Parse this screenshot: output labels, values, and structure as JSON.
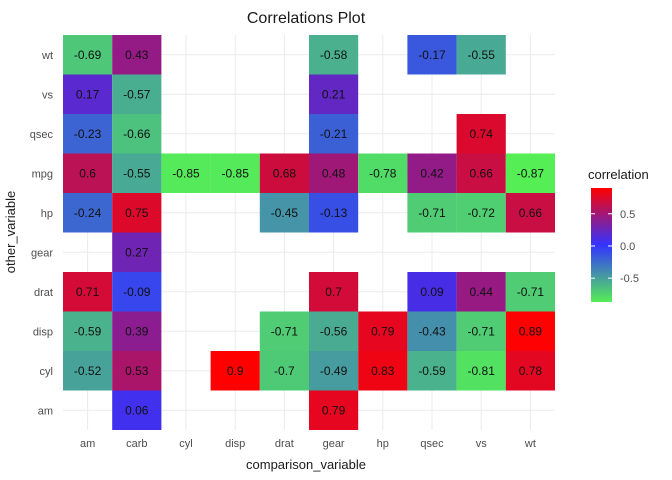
{
  "chart_data": {
    "type": "heatmap",
    "title": "Correlations Plot",
    "xlabel": "comparison_variable",
    "ylabel": "other_variable",
    "x_categories": [
      "am",
      "carb",
      "cyl",
      "disp",
      "drat",
      "gear",
      "hp",
      "qsec",
      "vs",
      "wt"
    ],
    "y_categories": [
      "am",
      "cyl",
      "disp",
      "drat",
      "gear",
      "hp",
      "mpg",
      "qsec",
      "vs",
      "wt"
    ],
    "grid": true,
    "legend": {
      "title": "correlation",
      "placement": "right",
      "ticks": [
        0.5,
        0.0,
        -0.5
      ],
      "tick_labels": [
        "0.5",
        "0.0",
        "-0.5"
      ],
      "range": [
        -0.87,
        0.9
      ],
      "colors": {
        "high": "#ff0000",
        "mid": "#3333ff",
        "low": "#55ee55"
      }
    },
    "cells": [
      {
        "x": "am",
        "y": "wt",
        "value": -0.69,
        "label": "-0.69"
      },
      {
        "x": "carb",
        "y": "wt",
        "value": 0.43,
        "label": "0.43"
      },
      {
        "x": "gear",
        "y": "wt",
        "value": -0.58,
        "label": "-0.58"
      },
      {
        "x": "qsec",
        "y": "wt",
        "value": -0.17,
        "label": "-0.17"
      },
      {
        "x": "vs",
        "y": "wt",
        "value": -0.55,
        "label": "-0.55"
      },
      {
        "x": "am",
        "y": "vs",
        "value": 0.17,
        "label": "0.17"
      },
      {
        "x": "carb",
        "y": "vs",
        "value": -0.57,
        "label": "-0.57"
      },
      {
        "x": "gear",
        "y": "vs",
        "value": 0.21,
        "label": "0.21"
      },
      {
        "x": "am",
        "y": "qsec",
        "value": -0.23,
        "label": "-0.23"
      },
      {
        "x": "carb",
        "y": "qsec",
        "value": -0.66,
        "label": "-0.66"
      },
      {
        "x": "gear",
        "y": "qsec",
        "value": -0.21,
        "label": "-0.21"
      },
      {
        "x": "vs",
        "y": "qsec",
        "value": 0.74,
        "label": "0.74"
      },
      {
        "x": "am",
        "y": "mpg",
        "value": 0.6,
        "label": "0.6"
      },
      {
        "x": "carb",
        "y": "mpg",
        "value": -0.55,
        "label": "-0.55"
      },
      {
        "x": "cyl",
        "y": "mpg",
        "value": -0.85,
        "label": "-0.85"
      },
      {
        "x": "disp",
        "y": "mpg",
        "value": -0.85,
        "label": "-0.85"
      },
      {
        "x": "drat",
        "y": "mpg",
        "value": 0.68,
        "label": "0.68"
      },
      {
        "x": "gear",
        "y": "mpg",
        "value": 0.48,
        "label": "0.48"
      },
      {
        "x": "hp",
        "y": "mpg",
        "value": -0.78,
        "label": "-0.78"
      },
      {
        "x": "qsec",
        "y": "mpg",
        "value": 0.42,
        "label": "0.42"
      },
      {
        "x": "vs",
        "y": "mpg",
        "value": 0.66,
        "label": "0.66"
      },
      {
        "x": "wt",
        "y": "mpg",
        "value": -0.87,
        "label": "-0.87"
      },
      {
        "x": "am",
        "y": "hp",
        "value": -0.24,
        "label": "-0.24"
      },
      {
        "x": "carb",
        "y": "hp",
        "value": 0.75,
        "label": "0.75"
      },
      {
        "x": "drat",
        "y": "hp",
        "value": -0.45,
        "label": "-0.45"
      },
      {
        "x": "gear",
        "y": "hp",
        "value": -0.13,
        "label": "-0.13"
      },
      {
        "x": "qsec",
        "y": "hp",
        "value": -0.71,
        "label": "-0.71"
      },
      {
        "x": "vs",
        "y": "hp",
        "value": -0.72,
        "label": "-0.72"
      },
      {
        "x": "wt",
        "y": "hp",
        "value": 0.66,
        "label": "0.66"
      },
      {
        "x": "carb",
        "y": "gear",
        "value": 0.27,
        "label": "0.27"
      },
      {
        "x": "am",
        "y": "drat",
        "value": 0.71,
        "label": "0.71"
      },
      {
        "x": "carb",
        "y": "drat",
        "value": -0.09,
        "label": "-0.09"
      },
      {
        "x": "gear",
        "y": "drat",
        "value": 0.7,
        "label": "0.7"
      },
      {
        "x": "qsec",
        "y": "drat",
        "value": 0.09,
        "label": "0.09"
      },
      {
        "x": "vs",
        "y": "drat",
        "value": 0.44,
        "label": "0.44"
      },
      {
        "x": "wt",
        "y": "drat",
        "value": -0.71,
        "label": "-0.71"
      },
      {
        "x": "am",
        "y": "disp",
        "value": -0.59,
        "label": "-0.59"
      },
      {
        "x": "carb",
        "y": "disp",
        "value": 0.39,
        "label": "0.39"
      },
      {
        "x": "drat",
        "y": "disp",
        "value": -0.71,
        "label": "-0.71"
      },
      {
        "x": "gear",
        "y": "disp",
        "value": -0.56,
        "label": "-0.56"
      },
      {
        "x": "hp",
        "y": "disp",
        "value": 0.79,
        "label": "0.79"
      },
      {
        "x": "qsec",
        "y": "disp",
        "value": -0.43,
        "label": "-0.43"
      },
      {
        "x": "vs",
        "y": "disp",
        "value": -0.71,
        "label": "-0.71"
      },
      {
        "x": "wt",
        "y": "disp",
        "value": 0.89,
        "label": "0.89"
      },
      {
        "x": "am",
        "y": "cyl",
        "value": -0.52,
        "label": "-0.52"
      },
      {
        "x": "carb",
        "y": "cyl",
        "value": 0.53,
        "label": "0.53"
      },
      {
        "x": "disp",
        "y": "cyl",
        "value": 0.9,
        "label": "0.9"
      },
      {
        "x": "drat",
        "y": "cyl",
        "value": -0.7,
        "label": "-0.7"
      },
      {
        "x": "gear",
        "y": "cyl",
        "value": -0.49,
        "label": "-0.49"
      },
      {
        "x": "hp",
        "y": "cyl",
        "value": 0.83,
        "label": "0.83"
      },
      {
        "x": "qsec",
        "y": "cyl",
        "value": -0.59,
        "label": "-0.59"
      },
      {
        "x": "vs",
        "y": "cyl",
        "value": -0.81,
        "label": "-0.81"
      },
      {
        "x": "wt",
        "y": "cyl",
        "value": 0.78,
        "label": "0.78"
      },
      {
        "x": "carb",
        "y": "am",
        "value": 0.06,
        "label": "0.06"
      },
      {
        "x": "gear",
        "y": "am",
        "value": 0.79,
        "label": "0.79"
      }
    ]
  }
}
